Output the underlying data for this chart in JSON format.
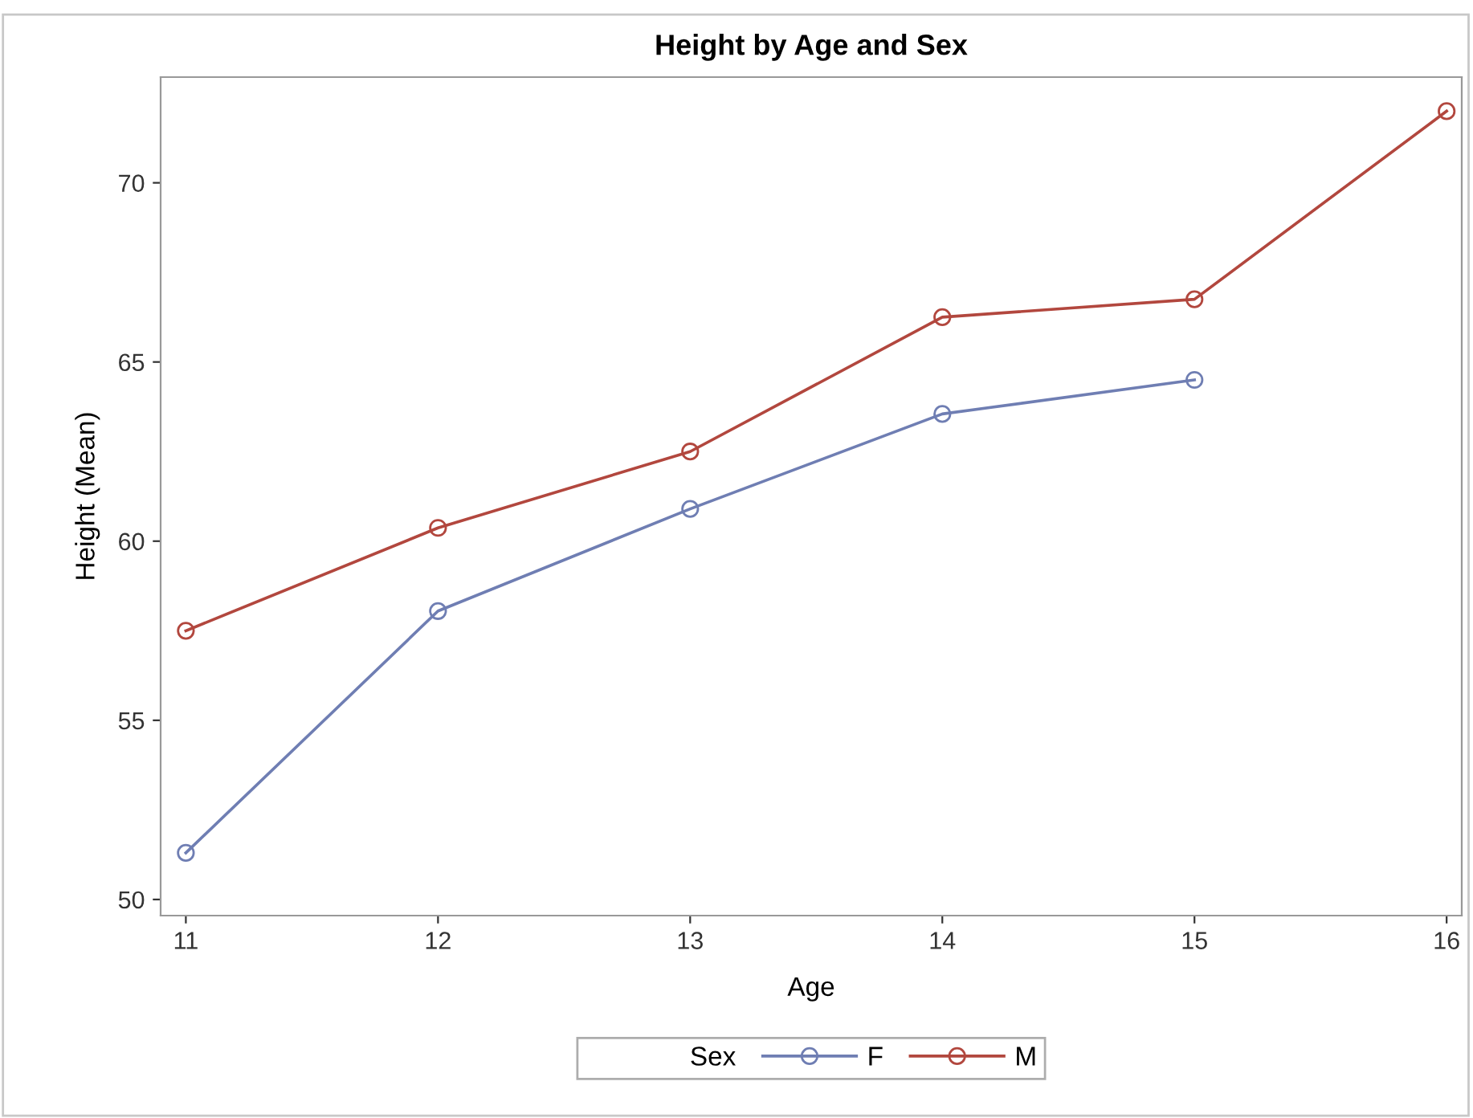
{
  "chart_data": {
    "type": "line",
    "title": "Height by Age and Sex",
    "xlabel": "Age",
    "ylabel": "Height (Mean)",
    "legend_title": "Sex",
    "x": [
      11,
      12,
      13,
      14,
      15,
      16
    ],
    "series": [
      {
        "name": "F",
        "color": "#6f7eb3",
        "values": [
          51.3,
          58.05,
          60.9,
          63.55,
          64.5,
          null
        ]
      },
      {
        "name": "M",
        "color": "#b2473e",
        "values": [
          57.5,
          60.37,
          62.5,
          66.25,
          66.75,
          72.0
        ]
      }
    ],
    "xlim": [
      10.9,
      16.06
    ],
    "xticks": [
      11,
      12,
      13,
      14,
      15,
      16
    ],
    "ylim": [
      49.55,
      72.95
    ],
    "yticks": [
      50,
      55,
      60,
      65,
      70
    ],
    "marker": "circle",
    "line_style": "solid",
    "legend": "bottom"
  }
}
